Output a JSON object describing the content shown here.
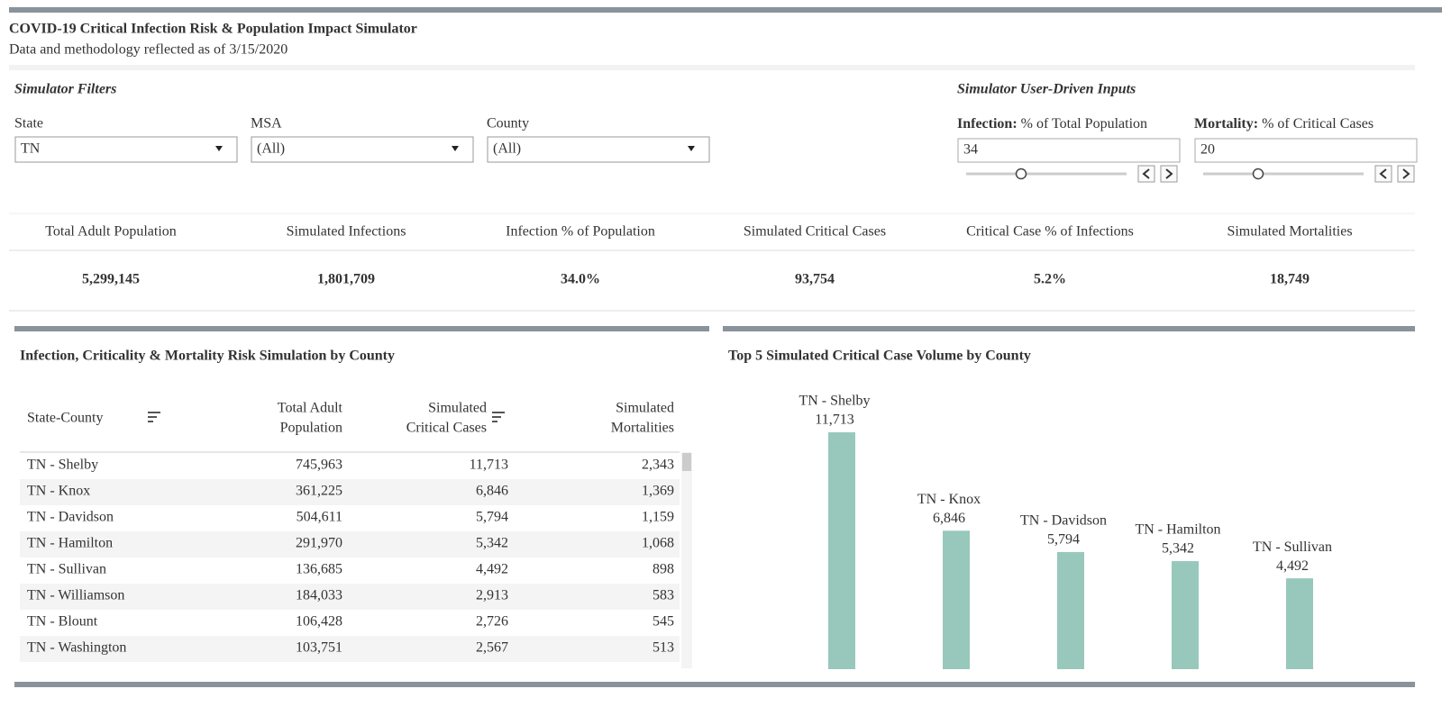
{
  "header": {
    "title": "COVID-19 Critical Infection Risk & Population Impact Simulator",
    "subtitle": "Data and methodology reflected as of 3/15/2020"
  },
  "filters": {
    "title": "Simulator Filters",
    "items": [
      {
        "label": "State",
        "value": "TN"
      },
      {
        "label": "MSA",
        "value": "(All)"
      },
      {
        "label": "County",
        "value": "(All)"
      }
    ]
  },
  "inputs": {
    "title": "Simulator User-Driven Inputs",
    "items": [
      {
        "label_bold": "Infection:",
        "label": "% of Total Population",
        "value": "34"
      },
      {
        "label_bold": "Mortality:",
        "label": "% of Critical Cases",
        "value": "20"
      }
    ]
  },
  "kpis": [
    {
      "label": "Total Adult Population",
      "value": "5,299,145"
    },
    {
      "label": "Simulated Infections",
      "value": "1,801,709"
    },
    {
      "label": "Infection % of Population",
      "value": "34.0%"
    },
    {
      "label": "Simulated Critical Cases",
      "value": "93,754"
    },
    {
      "label": "Critical Case % of Infections",
      "value": "5.2%"
    },
    {
      "label": "Simulated Mortalities",
      "value": "18,749"
    }
  ],
  "table": {
    "title": "Infection, Criticality & Mortality Risk Simulation by County",
    "columns": [
      [
        "State-County"
      ],
      [
        "Total Adult",
        "Population"
      ],
      [
        "Simulated",
        "Critical Cases"
      ],
      [
        "Simulated",
        "Mortalities"
      ]
    ],
    "rows": [
      [
        "TN - Shelby",
        "745,963",
        "11,713",
        "2,343"
      ],
      [
        "TN - Knox",
        "361,225",
        "6,846",
        "1,369"
      ],
      [
        "TN - Davidson",
        "504,611",
        "5,794",
        "1,159"
      ],
      [
        "TN - Hamilton",
        "291,970",
        "5,342",
        "1,068"
      ],
      [
        "TN - Sullivan",
        "136,685",
        "4,492",
        "898"
      ],
      [
        "TN - Williamson",
        "184,033",
        "2,913",
        "583"
      ],
      [
        "TN - Blount",
        "106,428",
        "2,726",
        "545"
      ],
      [
        "TN - Washington",
        "103,751",
        "2,567",
        "513"
      ]
    ]
  },
  "chart_data": {
    "type": "bar",
    "title": "Top 5 Simulated Critical Case Volume by County",
    "categories": [
      "TN - Shelby",
      "TN - Knox",
      "TN - Davidson",
      "TN - Hamilton",
      "TN - Sullivan"
    ],
    "values": [
      11713,
      6846,
      5794,
      5342,
      4492
    ],
    "value_labels": [
      "11,713",
      "6,846",
      "5,794",
      "5,342",
      "4,492"
    ],
    "color": "#98c8bb"
  }
}
